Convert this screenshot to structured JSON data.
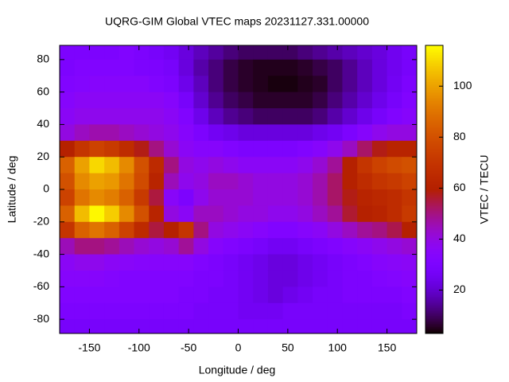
{
  "chart_data": {
    "type": "heatmap",
    "title": "UQRG-GIM Global VTEC maps 20231127.331.00000",
    "xlabel": "Longitude / deg",
    "ylabel": "Latitude / deg",
    "colorbar_label": "VTEC / TECU",
    "colormap": "gnuplot",
    "xlim": [
      -180,
      180
    ],
    "ylim": [
      -88.75,
      88.75
    ],
    "clim": [
      3,
      116
    ],
    "xticks": [
      -150,
      -100,
      -50,
      0,
      50,
      100,
      150
    ],
    "yticks": [
      -80,
      -60,
      -40,
      -20,
      0,
      20,
      40,
      60,
      80
    ],
    "cticks": [
      20,
      40,
      60,
      80,
      100
    ],
    "x": [
      -172.5,
      -157.5,
      -142.5,
      -127.5,
      -112.5,
      -97.5,
      -82.5,
      -67.5,
      -52.5,
      -37.5,
      -22.5,
      -7.5,
      7.5,
      22.5,
      37.5,
      52.5,
      67.5,
      82.5,
      97.5,
      112.5,
      127.5,
      142.5,
      157.5,
      172.5
    ],
    "y": [
      85,
      75,
      65,
      55,
      45,
      35,
      25,
      15,
      5,
      -5,
      -15,
      -25,
      -35,
      -45,
      -55,
      -65,
      -75,
      -85
    ],
    "values": [
      [
        30,
        30,
        30,
        30,
        32,
        30,
        28,
        26,
        22,
        18,
        15,
        12,
        10,
        10,
        10,
        10,
        12,
        14,
        16,
        18,
        20,
        22,
        25,
        28
      ],
      [
        30,
        32,
        32,
        32,
        32,
        30,
        30,
        28,
        22,
        16,
        12,
        8,
        6,
        5,
        5,
        5,
        6,
        8,
        10,
        14,
        18,
        22,
        25,
        28
      ],
      [
        32,
        33,
        34,
        34,
        34,
        34,
        32,
        30,
        24,
        18,
        12,
        8,
        6,
        5,
        4,
        4,
        5,
        6,
        10,
        14,
        18,
        22,
        26,
        30
      ],
      [
        34,
        36,
        36,
        36,
        36,
        36,
        36,
        34,
        28,
        20,
        14,
        10,
        8,
        6,
        6,
        6,
        6,
        8,
        12,
        16,
        20,
        24,
        28,
        32
      ],
      [
        36,
        38,
        38,
        38,
        38,
        38,
        38,
        36,
        32,
        24,
        18,
        14,
        12,
        10,
        10,
        10,
        10,
        12,
        16,
        20,
        24,
        28,
        32,
        34
      ],
      [
        40,
        44,
        46,
        46,
        44,
        42,
        40,
        38,
        34,
        30,
        26,
        24,
        22,
        22,
        22,
        22,
        22,
        24,
        26,
        30,
        34,
        38,
        40,
        40
      ],
      [
        60,
        70,
        75,
        72,
        66,
        58,
        50,
        42,
        36,
        34,
        34,
        32,
        30,
        30,
        30,
        30,
        32,
        34,
        38,
        44,
        52,
        58,
        62,
        62
      ],
      [
        85,
        100,
        110,
        105,
        95,
        80,
        65,
        50,
        40,
        38,
        40,
        38,
        36,
        36,
        36,
        36,
        38,
        42,
        48,
        60,
        70,
        75,
        78,
        80
      ],
      [
        80,
        95,
        100,
        98,
        90,
        78,
        62,
        45,
        38,
        40,
        44,
        44,
        42,
        40,
        40,
        40,
        42,
        46,
        52,
        60,
        66,
        70,
        72,
        75
      ],
      [
        75,
        90,
        95,
        92,
        85,
        72,
        55,
        35,
        30,
        38,
        42,
        42,
        42,
        40,
        40,
        40,
        42,
        46,
        52,
        58,
        62,
        64,
        66,
        70
      ],
      [
        85,
        105,
        115,
        108,
        95,
        80,
        62,
        40,
        36,
        44,
        44,
        42,
        40,
        40,
        38,
        38,
        40,
        44,
        48,
        56,
        60,
        62,
        66,
        72
      ],
      [
        70,
        85,
        90,
        85,
        75,
        65,
        55,
        60,
        70,
        50,
        40,
        38,
        36,
        34,
        32,
        32,
        34,
        36,
        40,
        44,
        48,
        50,
        54,
        60
      ],
      [
        45,
        50,
        50,
        48,
        45,
        42,
        40,
        42,
        48,
        40,
        34,
        32,
        30,
        28,
        26,
        26,
        28,
        30,
        32,
        34,
        36,
        38,
        40,
        42
      ],
      [
        36,
        38,
        38,
        36,
        35,
        34,
        34,
        34,
        34,
        32,
        30,
        28,
        26,
        24,
        22,
        22,
        24,
        26,
        28,
        30,
        32,
        34,
        35,
        36
      ],
      [
        34,
        34,
        34,
        33,
        32,
        32,
        32,
        32,
        32,
        30,
        30,
        28,
        26,
        24,
        22,
        22,
        24,
        26,
        28,
        30,
        30,
        32,
        33,
        34
      ],
      [
        32,
        32,
        32,
        32,
        32,
        32,
        32,
        32,
        30,
        30,
        28,
        28,
        26,
        24,
        22,
        24,
        26,
        28,
        28,
        30,
        30,
        30,
        30,
        32
      ],
      [
        30,
        30,
        30,
        30,
        30,
        30,
        30,
        30,
        30,
        28,
        28,
        28,
        26,
        26,
        26,
        28,
        28,
        28,
        28,
        28,
        28,
        28,
        28,
        30
      ],
      [
        28,
        28,
        28,
        28,
        28,
        28,
        28,
        28,
        28,
        28,
        28,
        28,
        28,
        28,
        28,
        28,
        28,
        28,
        28,
        28,
        28,
        28,
        28,
        28
      ]
    ]
  }
}
